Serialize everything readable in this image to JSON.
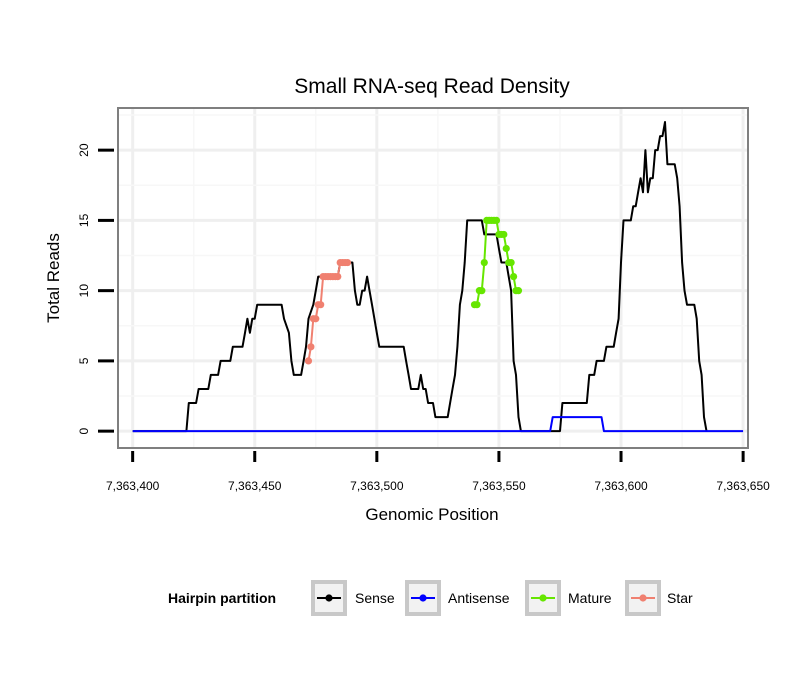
{
  "chart_data": {
    "type": "line",
    "title": "Small RNA-seq Read Density",
    "xlabel": "Genomic Position",
    "ylabel": "Total Reads",
    "xlim": [
      7363394,
      7363652
    ],
    "ylim": [
      -1.2,
      23
    ],
    "x_ticks": [
      {
        "value": 7363400,
        "label": "7,363,400"
      },
      {
        "value": 7363450,
        "label": "7,363,450"
      },
      {
        "value": 7363500,
        "label": "7,363,500"
      },
      {
        "value": 7363550,
        "label": "7,363,550"
      },
      {
        "value": 7363600,
        "label": "7,363,600"
      },
      {
        "value": 7363650,
        "label": "7,363,650"
      }
    ],
    "y_ticks": [
      {
        "value": 0,
        "label": "0"
      },
      {
        "value": 5,
        "label": "5"
      },
      {
        "value": 10,
        "label": "10"
      },
      {
        "value": 15,
        "label": "15"
      },
      {
        "value": 20,
        "label": "20"
      }
    ],
    "grid": true,
    "legend": {
      "title": "Hairpin partition",
      "position": "bottom",
      "entries": [
        {
          "label": "Sense",
          "color": "#000000"
        },
        {
          "label": "Antisense",
          "color": "#0000ff"
        },
        {
          "label": "Mature",
          "color": "#66e600"
        },
        {
          "label": "Star",
          "color": "#f08070"
        }
      ]
    },
    "series": [
      {
        "name": "Sense",
        "color": "#000000",
        "points": [
          [
            7363400,
            0
          ],
          [
            7363422,
            0
          ],
          [
            7363423,
            2
          ],
          [
            7363426,
            2
          ],
          [
            7363427,
            3
          ],
          [
            7363431,
            3
          ],
          [
            7363432,
            4
          ],
          [
            7363435,
            4
          ],
          [
            7363436,
            5
          ],
          [
            7363440,
            5
          ],
          [
            7363441,
            6
          ],
          [
            7363445,
            6
          ],
          [
            7363446,
            7
          ],
          [
            7363447,
            8
          ],
          [
            7363448,
            7
          ],
          [
            7363449,
            8
          ],
          [
            7363450,
            8
          ],
          [
            7363451,
            9
          ],
          [
            7363461,
            9
          ],
          [
            7363462,
            8
          ],
          [
            7363464,
            7
          ],
          [
            7363465,
            5
          ],
          [
            7363466,
            4
          ],
          [
            7363469,
            4
          ],
          [
            7363470,
            5
          ],
          [
            7363471,
            6
          ],
          [
            7363472,
            8
          ],
          [
            7363474,
            9
          ],
          [
            7363475,
            10
          ],
          [
            7363476,
            11
          ],
          [
            7363484,
            11
          ],
          [
            7363485,
            12
          ],
          [
            7363490,
            12
          ],
          [
            7363491,
            10
          ],
          [
            7363492,
            9
          ],
          [
            7363493,
            9
          ],
          [
            7363494,
            10
          ],
          [
            7363495,
            10
          ],
          [
            7363496,
            11
          ],
          [
            7363497,
            10
          ],
          [
            7363498,
            9
          ],
          [
            7363499,
            8
          ],
          [
            7363500,
            7
          ],
          [
            7363501,
            6
          ],
          [
            7363511,
            6
          ],
          [
            7363512,
            5
          ],
          [
            7363513,
            4
          ],
          [
            7363514,
            3
          ],
          [
            7363517,
            3
          ],
          [
            7363518,
            4
          ],
          [
            7363519,
            3
          ],
          [
            7363520,
            3
          ],
          [
            7363521,
            2
          ],
          [
            7363523,
            2
          ],
          [
            7363524,
            1
          ],
          [
            7363529,
            1
          ],
          [
            7363530,
            2
          ],
          [
            7363531,
            3
          ],
          [
            7363532,
            4
          ],
          [
            7363533,
            6
          ],
          [
            7363534,
            9
          ],
          [
            7363535,
            10
          ],
          [
            7363536,
            12
          ],
          [
            7363537,
            15
          ],
          [
            7363543,
            15
          ],
          [
            7363544,
            14
          ],
          [
            7363549,
            14
          ],
          [
            7363550,
            13
          ],
          [
            7363551,
            12
          ],
          [
            7363553,
            12
          ],
          [
            7363554,
            11
          ],
          [
            7363555,
            10
          ],
          [
            7363556,
            5
          ],
          [
            7363557,
            4
          ],
          [
            7363558,
            1
          ],
          [
            7363559,
            0
          ],
          [
            7363575,
            0
          ],
          [
            7363576,
            2
          ],
          [
            7363586,
            2
          ],
          [
            7363587,
            4
          ],
          [
            7363589,
            4
          ],
          [
            7363590,
            5
          ],
          [
            7363593,
            5
          ],
          [
            7363594,
            6
          ],
          [
            7363597,
            6
          ],
          [
            7363598,
            7
          ],
          [
            7363599,
            8
          ],
          [
            7363600,
            12
          ],
          [
            7363601,
            15
          ],
          [
            7363604,
            15
          ],
          [
            7363605,
            16
          ],
          [
            7363606,
            16
          ],
          [
            7363607,
            17
          ],
          [
            7363608,
            18
          ],
          [
            7363609,
            17
          ],
          [
            7363610,
            20
          ],
          [
            7363611,
            17
          ],
          [
            7363612,
            18
          ],
          [
            7363613,
            18
          ],
          [
            7363614,
            20
          ],
          [
            7363615,
            20
          ],
          [
            7363616,
            21
          ],
          [
            7363617,
            21
          ],
          [
            7363618,
            22
          ],
          [
            7363619,
            19
          ],
          [
            7363622,
            19
          ],
          [
            7363623,
            18
          ],
          [
            7363624,
            16
          ],
          [
            7363625,
            12
          ],
          [
            7363626,
            10
          ],
          [
            7363627,
            9
          ],
          [
            7363630,
            9
          ],
          [
            7363631,
            8
          ],
          [
            7363632,
            5
          ],
          [
            7363633,
            4
          ],
          [
            7363634,
            1
          ],
          [
            7363635,
            0
          ]
        ]
      },
      {
        "name": "Antisense",
        "color": "#0000ff",
        "points": [
          [
            7363400,
            0
          ],
          [
            7363571,
            0
          ],
          [
            7363572,
            1
          ],
          [
            7363592,
            1
          ],
          [
            7363593,
            0
          ],
          [
            7363650,
            0
          ]
        ]
      },
      {
        "name": "Mature",
        "color": "#66e600",
        "points": [
          [
            7363540,
            9
          ],
          [
            7363541,
            9
          ],
          [
            7363542,
            10
          ],
          [
            7363543,
            10
          ],
          [
            7363544,
            12
          ],
          [
            7363545,
            15
          ],
          [
            7363546,
            15
          ],
          [
            7363547,
            15
          ],
          [
            7363548,
            15
          ],
          [
            7363549,
            15
          ],
          [
            7363550,
            14
          ],
          [
            7363551,
            14
          ],
          [
            7363552,
            14
          ],
          [
            7363553,
            13
          ],
          [
            7363554,
            12
          ],
          [
            7363555,
            12
          ],
          [
            7363556,
            11
          ],
          [
            7363557,
            10
          ],
          [
            7363558,
            10
          ]
        ]
      },
      {
        "name": "Star",
        "color": "#f08070",
        "points": [
          [
            7363472,
            5
          ],
          [
            7363473,
            6
          ],
          [
            7363474,
            8
          ],
          [
            7363475,
            8
          ],
          [
            7363476,
            9
          ],
          [
            7363477,
            9
          ],
          [
            7363478,
            11
          ],
          [
            7363479,
            11
          ],
          [
            7363480,
            11
          ],
          [
            7363481,
            11
          ],
          [
            7363482,
            11
          ],
          [
            7363483,
            11
          ],
          [
            7363484,
            11
          ],
          [
            7363485,
            12
          ],
          [
            7363486,
            12
          ],
          [
            7363487,
            12
          ],
          [
            7363488,
            12
          ]
        ]
      }
    ]
  }
}
